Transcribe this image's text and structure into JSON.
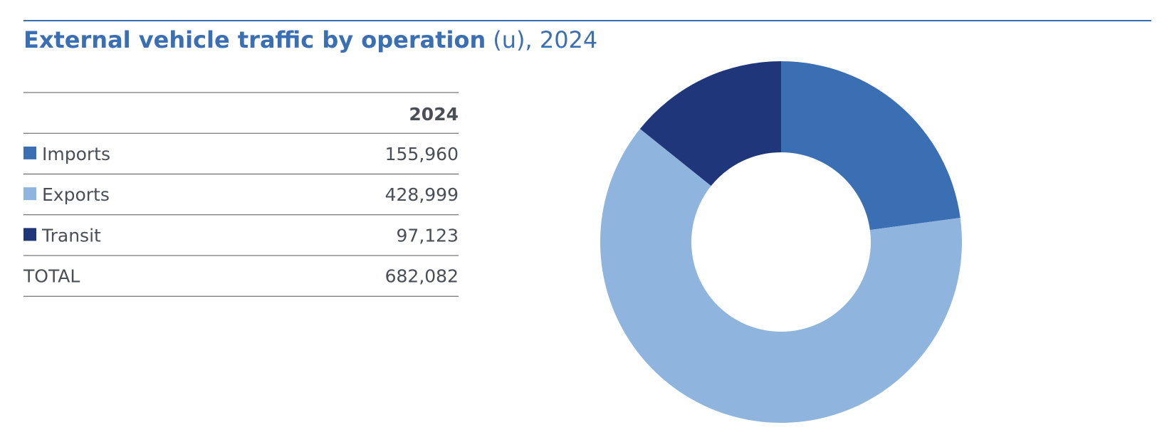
{
  "chart_data": {
    "type": "donut",
    "title": "External vehicle traffic by operation",
    "title_suffix": "(u), 2024",
    "column_header": "2024",
    "categories": [
      "Imports",
      "Exports",
      "Transit"
    ],
    "values": [
      155960,
      428999,
      97123
    ],
    "value_labels": [
      "155,960",
      "428,999",
      "97,123"
    ],
    "colors": [
      "#3a6fb3",
      "#8fb5df",
      "#1f377a"
    ],
    "total_label": "TOTAL",
    "total": 682082,
    "total_value_label": "682,082"
  }
}
